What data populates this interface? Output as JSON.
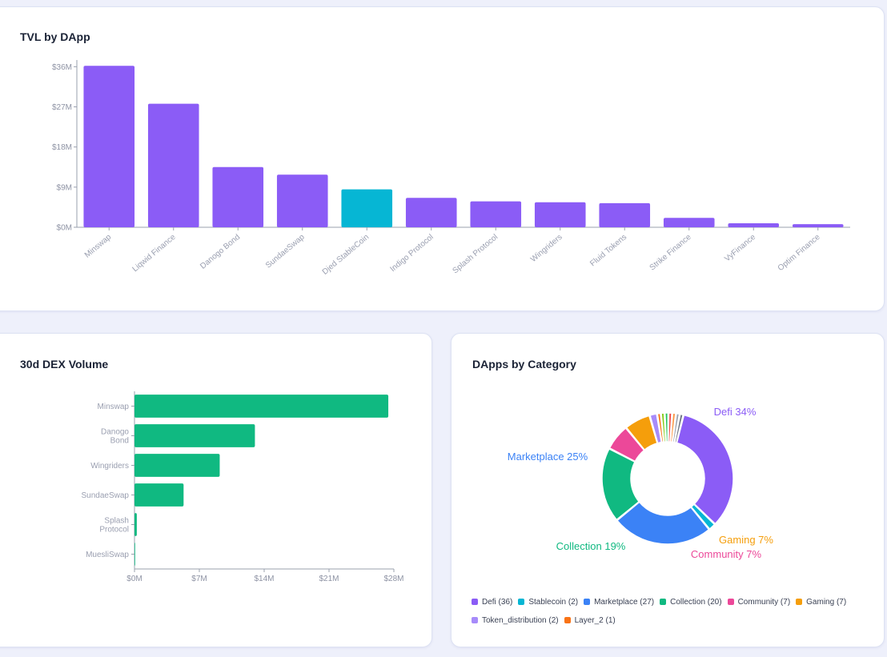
{
  "tvl_card": {
    "title": "TVL by DApp"
  },
  "dex_card": {
    "title": "30d DEX Volume"
  },
  "category_card": {
    "title": "DApps by Category"
  },
  "chart_data": [
    {
      "type": "bar",
      "title": "TVL by DApp",
      "categories": [
        "Minswap",
        "Liqwid Finance",
        "Danogo Bond",
        "SundaeSwap",
        "Djed StableCoin",
        "Indigo Protocol",
        "Splash Protocol",
        "Wingriders",
        "Fluid Tokens",
        "Strike Finance",
        "VyFinance",
        "Optim Finance"
      ],
      "values": [
        36.2,
        27.7,
        13.5,
        11.8,
        8.5,
        6.6,
        5.8,
        5.6,
        5.4,
        2.1,
        0.9,
        0.7
      ],
      "unit": "$M",
      "colors": [
        "#8b5cf6",
        "#8b5cf6",
        "#8b5cf6",
        "#8b5cf6",
        "#06b6d4",
        "#8b5cf6",
        "#8b5cf6",
        "#8b5cf6",
        "#8b5cf6",
        "#8b5cf6",
        "#8b5cf6",
        "#8b5cf6"
      ],
      "yticks": [
        "$0M",
        "$9M",
        "$18M",
        "$27M",
        "$36M"
      ],
      "ylim": [
        0,
        37.5
      ]
    },
    {
      "type": "bar",
      "orientation": "horizontal",
      "title": "30d DEX Volume",
      "categories": [
        [
          "Minswap"
        ],
        [
          "Danogo",
          "Bond"
        ],
        [
          "Wingriders"
        ],
        [
          "SundaeSwap"
        ],
        [
          "Splash",
          "Protocol"
        ],
        [
          "MuesliSwap"
        ]
      ],
      "values": [
        27.4,
        13.0,
        9.2,
        5.3,
        0.25,
        0.05
      ],
      "unit": "$M",
      "color": "#10b981",
      "xticks": [
        "$0M",
        "$7M",
        "$14M",
        "$21M",
        "$28M"
      ],
      "xlim": [
        0,
        28
      ]
    },
    {
      "type": "pie",
      "variant": "donut",
      "title": "DApps by Category",
      "slices": [
        {
          "name": "Defi",
          "count": 36,
          "legend": "Defi (36)",
          "color": "#8b5cf6",
          "label": "Defi 34%"
        },
        {
          "name": "Stablecoin",
          "count": 2,
          "legend": "Stablecoin (2)",
          "color": "#06b6d4",
          "label": ""
        },
        {
          "name": "Marketplace",
          "count": 27,
          "legend": "Marketplace (27)",
          "color": "#3b82f6",
          "label": "Marketplace 25%"
        },
        {
          "name": "Collection",
          "count": 20,
          "legend": "Collection (20)",
          "color": "#10b981",
          "label": "Collection 19%"
        },
        {
          "name": "Community",
          "count": 7,
          "legend": "Community (7)",
          "color": "#ec4899",
          "label": "Community 7%"
        },
        {
          "name": "Gaming",
          "count": 7,
          "legend": "Gaming (7)",
          "color": "#f59e0b",
          "label": "Gaming 7%"
        },
        {
          "name": "Token_distribution",
          "count": 2,
          "legend": "Token_distribution (2)",
          "color": "#a78bfa",
          "label": ""
        },
        {
          "name": "Layer_2",
          "count": 1,
          "legend": "Layer_2 (1)",
          "color": "#f97316",
          "label": ""
        },
        {
          "name": "",
          "count": 1,
          "legend": "",
          "color": "#84cc16",
          "label": ""
        },
        {
          "name": "",
          "count": 1,
          "legend": "",
          "color": "#22c55e",
          "label": ""
        },
        {
          "name": "",
          "count": 1,
          "legend": "",
          "color": "#ef4444",
          "label": ""
        },
        {
          "name": "",
          "count": 1,
          "legend": "",
          "color": "#fb923c",
          "label": ""
        },
        {
          "name": "",
          "count": 1,
          "legend": "",
          "color": "#9ca3af",
          "label": ""
        },
        {
          "name": "",
          "count": 1,
          "legend": "",
          "color": "#6b7280",
          "label": ""
        }
      ]
    }
  ]
}
